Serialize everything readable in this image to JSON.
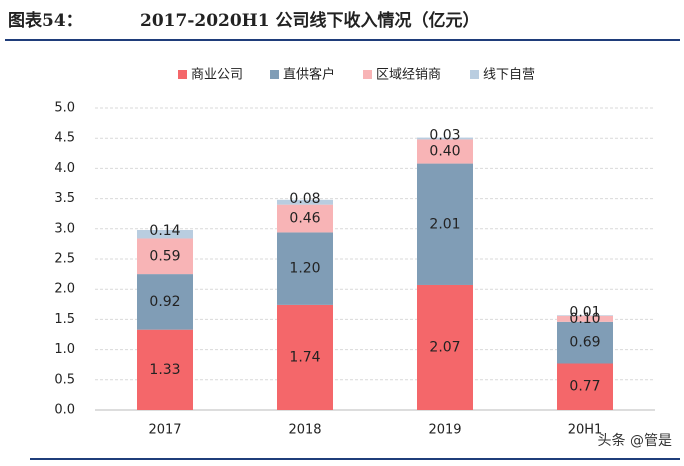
{
  "chart_data": {
    "type": "stacked_bar",
    "figure_label": "图表54：",
    "title": "2017-2020H1 公司线下收入情况（亿元）",
    "categories": [
      "2017",
      "2018",
      "2019",
      "20H1"
    ],
    "series": [
      {
        "name": "商业公司",
        "color": "#f4676a",
        "values": [
          1.33,
          1.74,
          2.07,
          0.77
        ],
        "value_labels": [
          "1.33",
          "1.74",
          "2.07",
          "0.77"
        ]
      },
      {
        "name": "直供客户",
        "color": "#809db6",
        "values": [
          0.92,
          1.2,
          2.01,
          0.69
        ],
        "value_labels": [
          "0.92",
          "1.20",
          "2.01",
          "0.69"
        ]
      },
      {
        "name": "区域经销商",
        "color": "#f8b4b6",
        "values": [
          0.59,
          0.46,
          0.4,
          0.1
        ],
        "value_labels": [
          "0.59",
          "0.46",
          "0.40",
          "0.10"
        ]
      },
      {
        "name": "线下自营",
        "color": "#b9cde0",
        "values": [
          0.14,
          0.08,
          0.03,
          0.01
        ],
        "value_labels": [
          "0.14",
          "0.08",
          "0.03",
          "0.01"
        ]
      }
    ],
    "ylim": [
      0,
      5
    ],
    "yticks": [
      {
        "value": 0,
        "label": "0.0"
      },
      {
        "value": 0.5,
        "label": "0.5"
      },
      {
        "value": 1,
        "label": "1.0"
      },
      {
        "value": 1.5,
        "label": "1.5"
      },
      {
        "value": 2,
        "label": "2.0"
      },
      {
        "value": 2.5,
        "label": "2.5"
      },
      {
        "value": 3,
        "label": "3.0"
      },
      {
        "value": 3.5,
        "label": "3.5"
      },
      {
        "value": 4,
        "label": "4.0"
      },
      {
        "value": 4.5,
        "label": "4.5"
      },
      {
        "value": 5,
        "label": "5.0"
      }
    ],
    "grid": true,
    "legend": "top",
    "watermark": "头条 @管是"
  }
}
